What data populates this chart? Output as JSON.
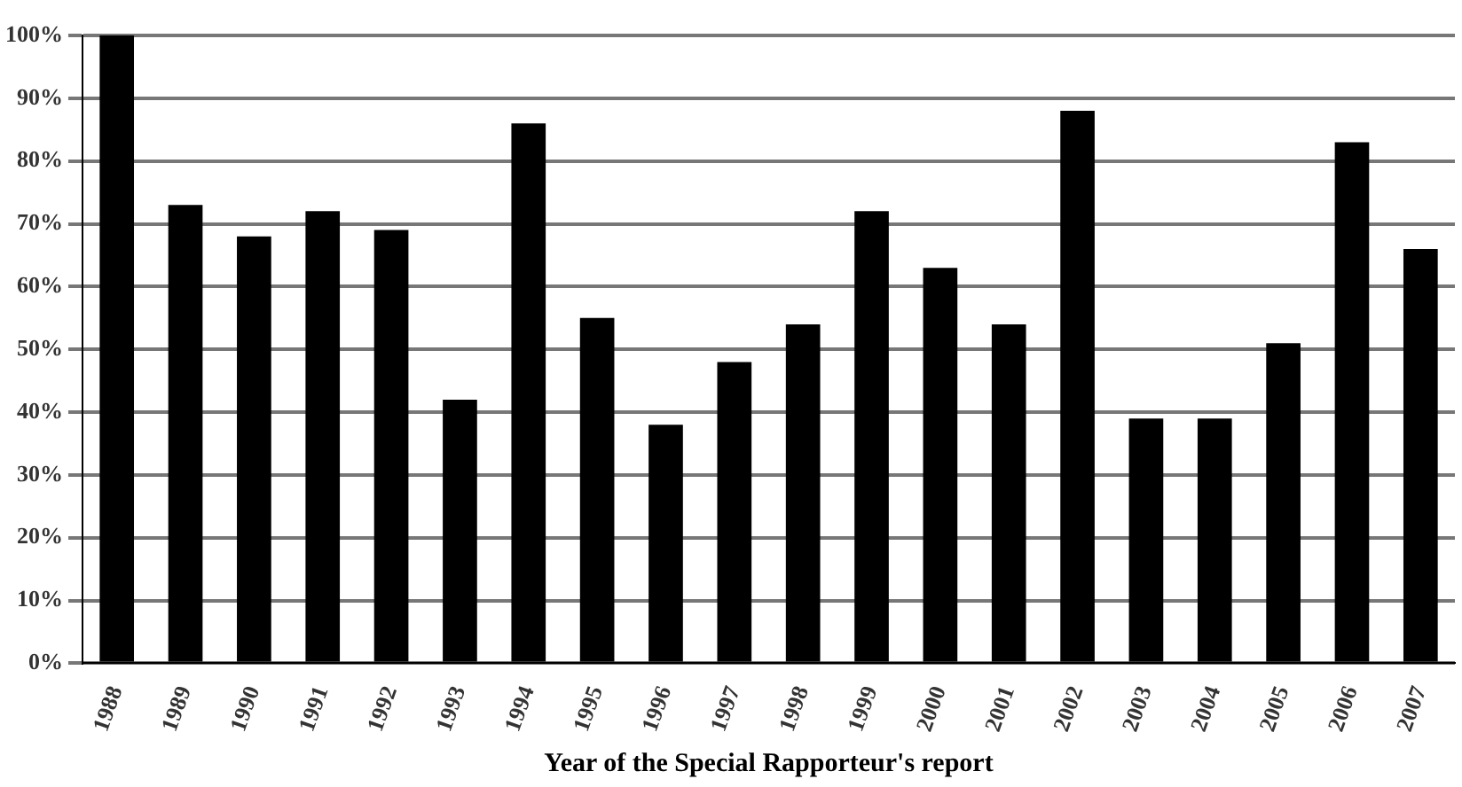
{
  "chart_data": {
    "type": "bar",
    "xlabel": "Year of the Special Rapporteur's report",
    "categories": [
      "1988",
      "1989",
      "1990",
      "1991",
      "1992",
      "1993",
      "1994",
      "1995",
      "1996",
      "1997",
      "1998",
      "1999",
      "2000",
      "2001",
      "2002",
      "2003",
      "2004",
      "2005",
      "2006",
      "2007"
    ],
    "values": [
      100,
      73,
      68,
      72,
      69,
      42,
      86,
      55,
      38,
      48,
      54,
      72,
      63,
      54,
      88,
      39,
      39,
      51,
      83,
      66
    ],
    "color": "#000000",
    "ylim": [
      0,
      100
    ],
    "yticks": [
      {
        "value": 0,
        "label": "0%"
      },
      {
        "value": 10,
        "label": "10%"
      },
      {
        "value": 20,
        "label": "20%"
      },
      {
        "value": 30,
        "label": "30%"
      },
      {
        "value": 40,
        "label": "40%"
      },
      {
        "value": 50,
        "label": "50%"
      },
      {
        "value": 60,
        "label": "60%"
      },
      {
        "value": 70,
        "label": "70%"
      },
      {
        "value": 80,
        "label": "80%"
      },
      {
        "value": 90,
        "label": "90%"
      },
      {
        "value": 100,
        "label": "100%"
      }
    ],
    "grid": "y",
    "legend": false
  }
}
